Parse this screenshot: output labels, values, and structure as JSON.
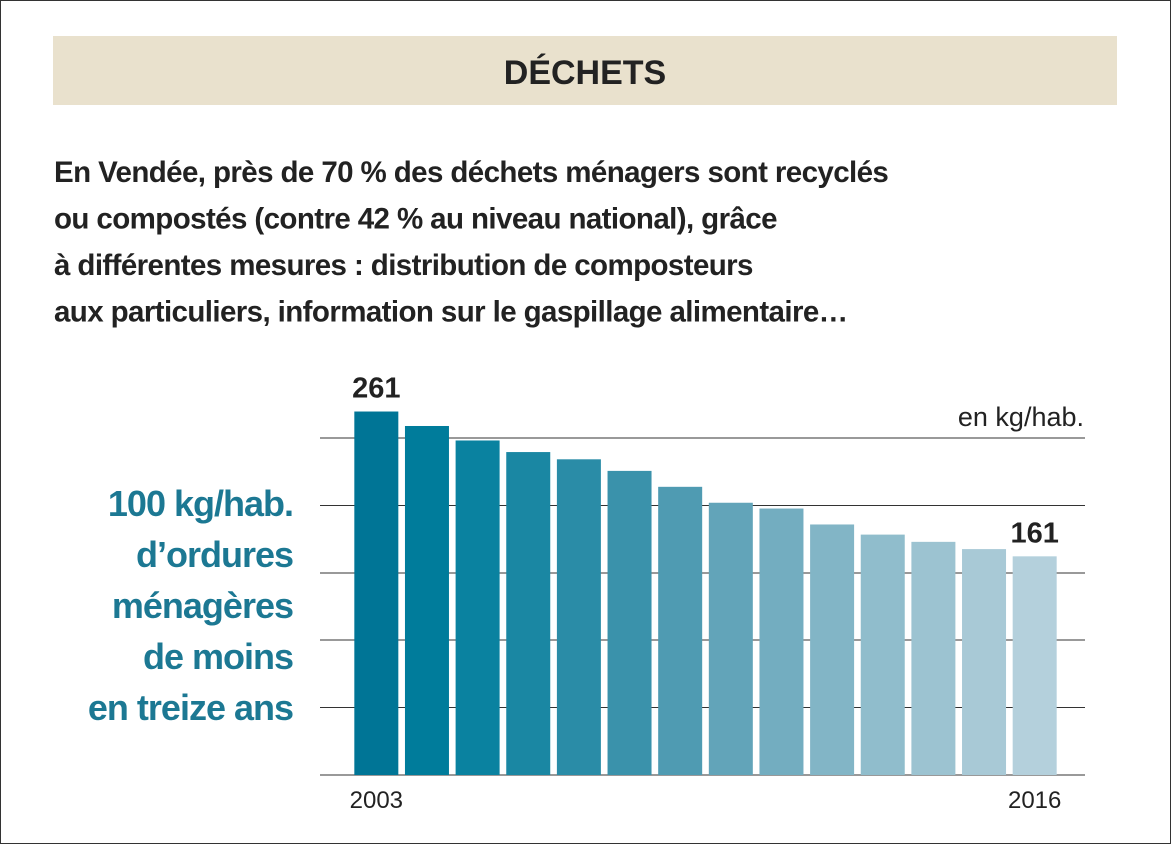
{
  "chart_data": {
    "type": "bar",
    "title": "DÉCHETS",
    "subtitle_lines": [
      "En Vendée, près de 70 % des déchets ménagers sont recyclés",
      "ou compostés (contre 42 % au niveau national), grâce",
      "à différentes mesures : distribution de composteurs",
      "aux particuliers, information sur le gaspillage alimentaire…"
    ],
    "annotation_lines": [
      "100 kg/hab.",
      "d’ordures",
      "ménagères",
      "de moins",
      "en treize ans"
    ],
    "unit": "en kg/hab.",
    "categories": [
      "2003",
      null,
      null,
      null,
      null,
      null,
      null,
      null,
      null,
      null,
      null,
      null,
      null,
      "2016"
    ],
    "values": [
      261,
      251,
      241,
      233,
      228,
      220,
      209,
      198,
      194,
      183,
      176,
      171,
      166,
      161
    ],
    "colors": [
      "#007596",
      "#007c9b",
      "#0a82a0",
      "#1a87a3",
      "#2a8ca7",
      "#3a92ab",
      "#4f9bb2",
      "#62a4b9",
      "#73adc0",
      "#82b5c6",
      "#90bdcc",
      "#9cc3d1",
      "#a8c9d6",
      "#b4d0dc"
    ],
    "ylim": [
      10,
      280
    ]
  }
}
